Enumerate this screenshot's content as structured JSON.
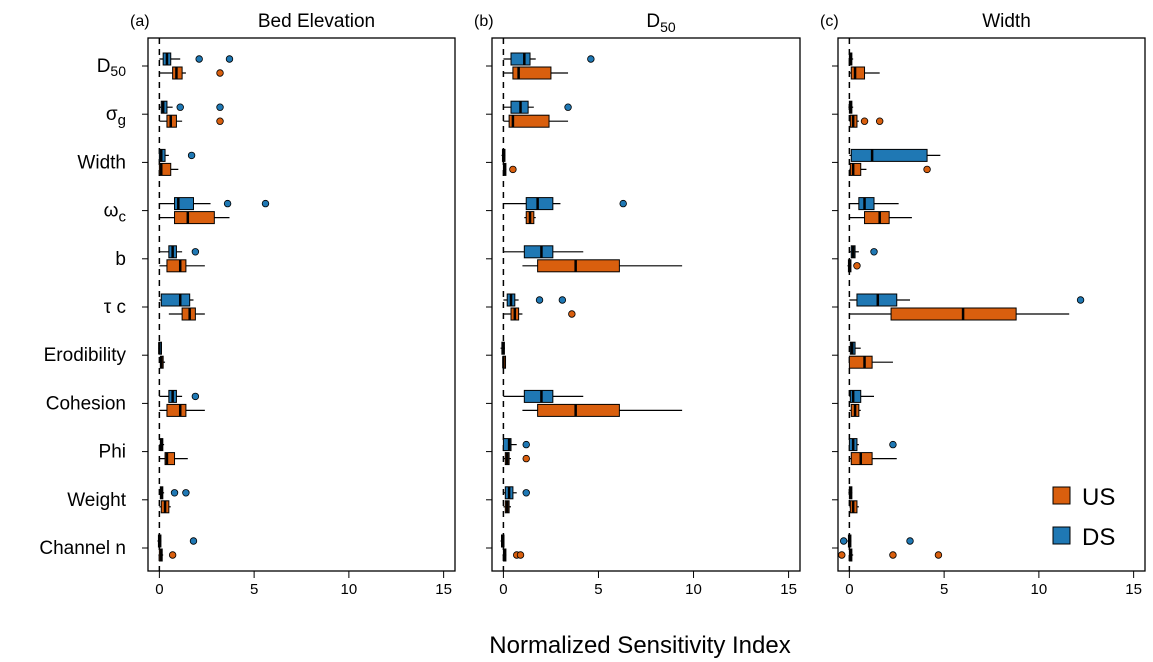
{
  "chart_data": {
    "type": "boxplot",
    "xlabel": "Normalized Sensitivity Index",
    "xlim": [
      -0.6,
      15.6
    ],
    "xticks": [
      0,
      5,
      10,
      15
    ],
    "reference_line": 0,
    "categories": [
      "D₅₀",
      "σg",
      "Width",
      "ωc",
      "b",
      "τ c",
      "Erodibility",
      "Cohesion",
      "Phi",
      "Weight",
      "Channel n"
    ],
    "legend": [
      {
        "name": "US",
        "color": "#D95F0E"
      },
      {
        "name": "DS",
        "color": "#1F78B4"
      }
    ],
    "panels": [
      {
        "letter": "(a)",
        "title": "Bed Elevation",
        "title_sub": "",
        "series": {
          "DS": [
            {
              "wmin": 0.0,
              "q1": 0.2,
              "med": 0.4,
              "q3": 0.6,
              "wmax": 1.1,
              "out": [
                2.1,
                3.7
              ]
            },
            {
              "wmin": 0.0,
              "q1": 0.1,
              "med": 0.2,
              "q3": 0.4,
              "wmax": 0.7,
              "out": [
                1.1,
                3.2
              ]
            },
            {
              "wmin": 0.0,
              "q1": 0.0,
              "med": 0.1,
              "q3": 0.3,
              "wmax": 0.5,
              "out": [
                1.7
              ]
            },
            {
              "wmin": 0.0,
              "q1": 0.8,
              "med": 1.0,
              "q3": 1.8,
              "wmax": 2.7,
              "out": [
                3.6,
                5.6
              ]
            },
            {
              "wmin": 0.0,
              "q1": 0.5,
              "med": 0.7,
              "q3": 0.9,
              "wmax": 1.2,
              "out": [
                1.9
              ]
            },
            {
              "wmin": 0.0,
              "q1": 0.1,
              "med": 1.1,
              "q3": 1.6,
              "wmax": 1.8,
              "out": []
            },
            {
              "wmin": -0.05,
              "q1": -0.02,
              "med": 0.0,
              "q3": 0.02,
              "wmax": 0.05,
              "out": []
            },
            {
              "wmin": 0.0,
              "q1": 0.5,
              "med": 0.7,
              "q3": 0.9,
              "wmax": 1.2,
              "out": [
                1.9
              ]
            },
            {
              "wmin": 0.0,
              "q1": 0.05,
              "med": 0.1,
              "q3": 0.15,
              "wmax": 0.25,
              "out": []
            },
            {
              "wmin": 0.0,
              "q1": 0.05,
              "med": 0.1,
              "q3": 0.15,
              "wmax": 0.25,
              "out": [
                0.8,
                1.4
              ]
            },
            {
              "wmin": -0.1,
              "q1": -0.05,
              "med": 0.0,
              "q3": 0.05,
              "wmax": 0.1,
              "out": [
                1.8
              ]
            }
          ],
          "US": [
            {
              "wmin": 0.0,
              "q1": 0.7,
              "med": 0.9,
              "q3": 1.2,
              "wmax": 1.4,
              "out": [
                3.2
              ]
            },
            {
              "wmin": 0.0,
              "q1": 0.4,
              "med": 0.6,
              "q3": 0.9,
              "wmax": 1.2,
              "out": [
                3.2
              ]
            },
            {
              "wmin": 0.0,
              "q1": 0.0,
              "med": 0.1,
              "q3": 0.6,
              "wmax": 1.0,
              "out": []
            },
            {
              "wmin": 0.0,
              "q1": 0.8,
              "med": 1.5,
              "q3": 2.9,
              "wmax": 3.7,
              "out": []
            },
            {
              "wmin": 0.0,
              "q1": 0.4,
              "med": 1.1,
              "q3": 1.4,
              "wmax": 2.4,
              "out": []
            },
            {
              "wmin": 0.5,
              "q1": 1.2,
              "med": 1.6,
              "q3": 1.9,
              "wmax": 2.4,
              "out": []
            },
            {
              "wmin": 0.0,
              "q1": 0.05,
              "med": 0.1,
              "q3": 0.2,
              "wmax": 0.3,
              "out": []
            },
            {
              "wmin": 0.0,
              "q1": 0.4,
              "med": 1.1,
              "q3": 1.4,
              "wmax": 2.4,
              "out": []
            },
            {
              "wmin": 0.0,
              "q1": 0.3,
              "med": 0.4,
              "q3": 0.8,
              "wmax": 1.5,
              "out": []
            },
            {
              "wmin": 0.0,
              "q1": 0.1,
              "med": 0.3,
              "q3": 0.5,
              "wmax": 0.6,
              "out": []
            },
            {
              "wmin": -0.05,
              "q1": 0.0,
              "med": 0.1,
              "q3": 0.15,
              "wmax": 0.2,
              "out": [
                0.7
              ]
            }
          ]
        }
      },
      {
        "letter": "(b)",
        "title": "D",
        "title_sub": "50",
        "series": {
          "DS": [
            {
              "wmin": 0.0,
              "q1": 0.4,
              "med": 1.1,
              "q3": 1.4,
              "wmax": 1.7,
              "out": [
                4.6
              ]
            },
            {
              "wmin": 0.0,
              "q1": 0.4,
              "med": 0.9,
              "q3": 1.3,
              "wmax": 1.6,
              "out": [
                3.4
              ]
            },
            {
              "wmin": -0.1,
              "q1": -0.05,
              "med": 0.0,
              "q3": 0.05,
              "wmax": 0.1,
              "out": []
            },
            {
              "wmin": 0.0,
              "q1": 1.2,
              "med": 1.8,
              "q3": 2.6,
              "wmax": 3.0,
              "out": [
                6.3
              ]
            },
            {
              "wmin": 0.0,
              "q1": 1.1,
              "med": 2.0,
              "q3": 2.6,
              "wmax": 4.2,
              "out": []
            },
            {
              "wmin": 0.0,
              "q1": 0.2,
              "med": 0.4,
              "q3": 0.6,
              "wmax": 0.8,
              "out": [
                1.9,
                3.1
              ]
            },
            {
              "wmin": -0.15,
              "q1": -0.08,
              "med": 0.0,
              "q3": 0.03,
              "wmax": 0.08,
              "out": []
            },
            {
              "wmin": 0.0,
              "q1": 1.1,
              "med": 2.0,
              "q3": 2.6,
              "wmax": 4.2,
              "out": []
            },
            {
              "wmin": 0.0,
              "q1": 0.0,
              "med": 0.3,
              "q3": 0.4,
              "wmax": 0.7,
              "out": [
                1.2
              ]
            },
            {
              "wmin": 0.0,
              "q1": 0.1,
              "med": 0.3,
              "q3": 0.5,
              "wmax": 0.7,
              "out": [
                1.2
              ]
            },
            {
              "wmin": -0.15,
              "q1": -0.1,
              "med": -0.05,
              "q3": 0.0,
              "wmax": 0.05,
              "out": []
            }
          ],
          "US": [
            {
              "wmin": 0.0,
              "q1": 0.5,
              "med": 0.8,
              "q3": 2.5,
              "wmax": 3.4,
              "out": []
            },
            {
              "wmin": 0.0,
              "q1": 0.3,
              "med": 0.5,
              "q3": 2.4,
              "wmax": 3.4,
              "out": []
            },
            {
              "wmin": 0.0,
              "q1": 0.0,
              "med": 0.05,
              "q3": 0.1,
              "wmax": 0.15,
              "out": [
                0.5
              ]
            },
            {
              "wmin": 1.1,
              "q1": 1.2,
              "med": 1.4,
              "q3": 1.6,
              "wmax": 1.7,
              "out": []
            },
            {
              "wmin": 1.0,
              "q1": 1.8,
              "med": 3.8,
              "q3": 6.1,
              "wmax": 9.4,
              "out": []
            },
            {
              "wmin": 0.0,
              "q1": 0.4,
              "med": 0.6,
              "q3": 0.8,
              "wmax": 1.0,
              "out": [
                3.6
              ]
            },
            {
              "wmin": -0.05,
              "q1": -0.02,
              "med": 0.0,
              "q3": 0.02,
              "wmax": 0.05,
              "out": []
            },
            {
              "wmin": 1.0,
              "q1": 1.8,
              "med": 3.8,
              "q3": 6.1,
              "wmax": 9.4,
              "out": []
            },
            {
              "wmin": 0.0,
              "q1": 0.1,
              "med": 0.2,
              "q3": 0.3,
              "wmax": 0.4,
              "out": [
                1.2
              ]
            },
            {
              "wmin": 0.0,
              "q1": 0.1,
              "med": 0.2,
              "q3": 0.3,
              "wmax": 0.4,
              "out": []
            },
            {
              "wmin": -0.05,
              "q1": 0.0,
              "med": 0.05,
              "q3": 0.1,
              "wmax": 0.15,
              "out": [
                0.7,
                0.9
              ]
            }
          ]
        }
      },
      {
        "letter": "(c)",
        "title": "Width",
        "title_sub": "",
        "series": {
          "DS": [
            {
              "wmin": -0.05,
              "q1": 0.0,
              "med": 0.05,
              "q3": 0.1,
              "wmax": 0.2,
              "out": []
            },
            {
              "wmin": -0.05,
              "q1": 0.0,
              "med": 0.05,
              "q3": 0.1,
              "wmax": 0.2,
              "out": []
            },
            {
              "wmin": 0.0,
              "q1": 0.1,
              "med": 1.2,
              "q3": 4.1,
              "wmax": 4.8,
              "out": []
            },
            {
              "wmin": 0.0,
              "q1": 0.5,
              "med": 0.8,
              "q3": 1.3,
              "wmax": 2.6,
              "out": []
            },
            {
              "wmin": 0.0,
              "q1": 0.1,
              "med": 0.2,
              "q3": 0.3,
              "wmax": 0.5,
              "out": [
                1.3
              ]
            },
            {
              "wmin": 0.0,
              "q1": 0.4,
              "med": 1.5,
              "q3": 2.5,
              "wmax": 3.2,
              "out": [
                12.2
              ]
            },
            {
              "wmin": 0.0,
              "q1": 0.05,
              "med": 0.15,
              "q3": 0.3,
              "wmax": 0.6,
              "out": []
            },
            {
              "wmin": 0.0,
              "q1": 0.05,
              "med": 0.2,
              "q3": 0.6,
              "wmax": 1.3,
              "out": []
            },
            {
              "wmin": 0.0,
              "q1": 0.0,
              "med": 0.2,
              "q3": 0.4,
              "wmax": 0.5,
              "out": [
                2.3
              ]
            },
            {
              "wmin": -0.05,
              "q1": 0.0,
              "med": 0.05,
              "q3": 0.1,
              "wmax": 0.15,
              "out": []
            },
            {
              "wmin": -0.1,
              "q1": -0.05,
              "med": 0.0,
              "q3": 0.05,
              "wmax": 0.1,
              "out": [
                -0.3,
                3.2
              ]
            }
          ],
          "US": [
            {
              "wmin": 0.0,
              "q1": 0.1,
              "med": 0.3,
              "q3": 0.8,
              "wmax": 1.6,
              "out": []
            },
            {
              "wmin": 0.0,
              "q1": 0.05,
              "med": 0.2,
              "q3": 0.4,
              "wmax": 0.5,
              "out": [
                0.8,
                1.6
              ]
            },
            {
              "wmin": 0.0,
              "q1": 0.05,
              "med": 0.2,
              "q3": 0.6,
              "wmax": 0.9,
              "out": [
                4.1
              ]
            },
            {
              "wmin": 0.0,
              "q1": 0.8,
              "med": 1.6,
              "q3": 2.1,
              "wmax": 3.3,
              "out": []
            },
            {
              "wmin": -0.1,
              "q1": -0.05,
              "med": 0.0,
              "q3": 0.05,
              "wmax": 0.1,
              "out": [
                0.4
              ]
            },
            {
              "wmin": 0.0,
              "q1": 2.2,
              "med": 6.0,
              "q3": 8.8,
              "wmax": 11.6,
              "out": []
            },
            {
              "wmin": 0.0,
              "q1": 0.0,
              "med": 0.8,
              "q3": 1.2,
              "wmax": 2.3,
              "out": []
            },
            {
              "wmin": 0.0,
              "q1": 0.1,
              "med": 0.3,
              "q3": 0.5,
              "wmax": 0.6,
              "out": []
            },
            {
              "wmin": 0.0,
              "q1": 0.1,
              "med": 0.6,
              "q3": 1.2,
              "wmax": 2.5,
              "out": []
            },
            {
              "wmin": 0.0,
              "q1": 0.05,
              "med": 0.2,
              "q3": 0.4,
              "wmax": 0.5,
              "out": []
            },
            {
              "wmin": 0.0,
              "q1": 0.0,
              "med": 0.05,
              "q3": 0.1,
              "wmax": 0.2,
              "out": [
                -0.4,
                2.3,
                4.7
              ]
            }
          ]
        }
      }
    ]
  }
}
